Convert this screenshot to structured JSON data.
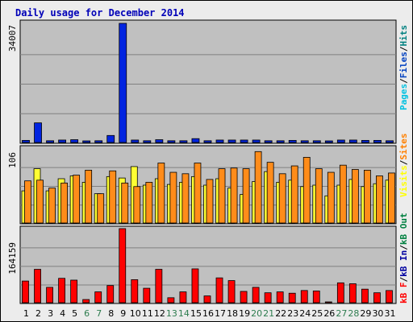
{
  "title": "Daily usage for December 2014",
  "colors": {
    "background": "#ececec",
    "panel": "#c0c0c0",
    "pages": "#00c0e0",
    "files": "#0040c0",
    "hits": "#008080",
    "visits": "#ffff00",
    "sites": "#ff8000",
    "kb_out": "#008040",
    "kb_in": "#0000a0",
    "kb_f": "#ff0000",
    "bar_pages": "#00c8e8",
    "bar_files": "#0024e0",
    "bar_hits": "#008060",
    "bar_visits": "#ffff33",
    "bar_sites": "#ff8c1a",
    "bar_kbf": "#ff0000",
    "weekend_tick": "#2e7d4f",
    "weekday_tick": "#000000"
  },
  "chart_data": [
    {
      "type": "bar",
      "panel": "hits",
      "y_max_label": "34007",
      "ylim": [
        0,
        34007
      ],
      "x": [
        1,
        2,
        3,
        4,
        5,
        6,
        7,
        8,
        9,
        10,
        11,
        12,
        13,
        14,
        15,
        16,
        17,
        18,
        19,
        20,
        21,
        22,
        23,
        24,
        25,
        26,
        27,
        28,
        29,
        30,
        31
      ],
      "series": [
        {
          "name": "Pages",
          "values": [
            0,
            0,
            0,
            0,
            0,
            0,
            0,
            0,
            0,
            0,
            0,
            0,
            0,
            0,
            0,
            0,
            0,
            0,
            0,
            0,
            0,
            0,
            0,
            0,
            0,
            0,
            0,
            0,
            0,
            0,
            0
          ]
        },
        {
          "name": "Files",
          "values": [
            600,
            5600,
            500,
            700,
            800,
            300,
            500,
            2000,
            34007,
            700,
            500,
            800,
            500,
            500,
            1100,
            500,
            700,
            700,
            700,
            700,
            500,
            500,
            600,
            500,
            500,
            400,
            700,
            700,
            600,
            600,
            500
          ]
        },
        {
          "name": "Hits",
          "values": [
            0,
            0,
            0,
            0,
            0,
            0,
            0,
            0,
            0,
            0,
            0,
            0,
            0,
            0,
            0,
            0,
            0,
            0,
            0,
            0,
            0,
            0,
            0,
            0,
            0,
            0,
            0,
            0,
            0,
            0,
            0
          ]
        }
      ],
      "legend": [
        "Pages",
        "Files",
        "Hits"
      ]
    },
    {
      "type": "bar",
      "panel": "visits",
      "y_max_label": "106",
      "ylim": [
        0,
        106
      ],
      "x": [
        1,
        2,
        3,
        4,
        5,
        6,
        7,
        8,
        9,
        10,
        11,
        12,
        13,
        14,
        15,
        16,
        17,
        18,
        19,
        20,
        21,
        22,
        23,
        24,
        25,
        26,
        27,
        28,
        29,
        30,
        31
      ],
      "series": [
        {
          "name": "Visits",
          "values": [
            45,
            76,
            45,
            62,
            66,
            57,
            41,
            65,
            63,
            79,
            53,
            62,
            54,
            57,
            65,
            53,
            62,
            49,
            40,
            58,
            72,
            57,
            60,
            51,
            53,
            38,
            53,
            61,
            51,
            55,
            60
          ]
        },
        {
          "name": "Sites",
          "values": [
            59,
            60,
            49,
            56,
            67,
            74,
            41,
            73,
            56,
            51,
            57,
            84,
            71,
            69,
            84,
            61,
            76,
            77,
            76,
            100,
            85,
            69,
            80,
            92,
            76,
            71,
            81,
            75,
            74,
            66,
            70
          ]
        }
      ],
      "legend": [
        "Visits",
        "Sites"
      ]
    },
    {
      "type": "bar",
      "panel": "kbytes",
      "y_max_label": "164159",
      "ylim": [
        0,
        164159
      ],
      "x": [
        1,
        2,
        3,
        4,
        5,
        6,
        7,
        8,
        9,
        10,
        11,
        12,
        13,
        14,
        15,
        16,
        17,
        18,
        19,
        20,
        21,
        22,
        23,
        24,
        25,
        26,
        27,
        28,
        29,
        30,
        31
      ],
      "series": [
        {
          "name": "KBytes F",
          "values": [
            48000,
            74000,
            34000,
            54000,
            50000,
            7000,
            24000,
            38000,
            164159,
            51000,
            32000,
            74000,
            11000,
            24000,
            75000,
            15000,
            55000,
            49000,
            25000,
            34000,
            22000,
            24000,
            21000,
            27000,
            26000,
            1500,
            44000,
            42000,
            30000,
            22000,
            27000
          ]
        }
      ],
      "legend": [
        "kB F",
        "kB In",
        "kB Out"
      ]
    }
  ],
  "legend_top": [
    {
      "text": "Pages",
      "color_key": "pages"
    },
    {
      "text": "/",
      "color_key": "weekday_tick"
    },
    {
      "text": "Files",
      "color_key": "files"
    },
    {
      "text": "/",
      "color_key": "weekday_tick"
    },
    {
      "text": "Hits",
      "color_key": "hits"
    }
  ],
  "legend_mid": [
    {
      "text": "Visits",
      "color_key": "visits"
    },
    {
      "text": "/",
      "color_key": "weekday_tick"
    },
    {
      "text": "Sites",
      "color_key": "sites"
    }
  ],
  "legend_bottom": [
    {
      "text": "kB F",
      "color_key": "kb_f"
    },
    {
      "text": "/",
      "color_key": "weekday_tick"
    },
    {
      "text": "kB In",
      "color_key": "kb_in"
    },
    {
      "text": "/",
      "color_key": "weekday_tick"
    },
    {
      "text": "kB Out",
      "color_key": "kb_out"
    }
  ],
  "day_labels": [
    "1",
    "2",
    "3",
    "4",
    "5",
    "6",
    "7",
    "8",
    "9",
    "10",
    "11",
    "12",
    "13",
    "14",
    "15",
    "16",
    "17",
    "18",
    "19",
    "20",
    "21",
    "22",
    "23",
    "24",
    "25",
    "26",
    "27",
    "28",
    "29",
    "30",
    "31"
  ],
  "weekend_days": [
    6,
    7,
    13,
    14,
    20,
    21,
    27,
    28
  ]
}
